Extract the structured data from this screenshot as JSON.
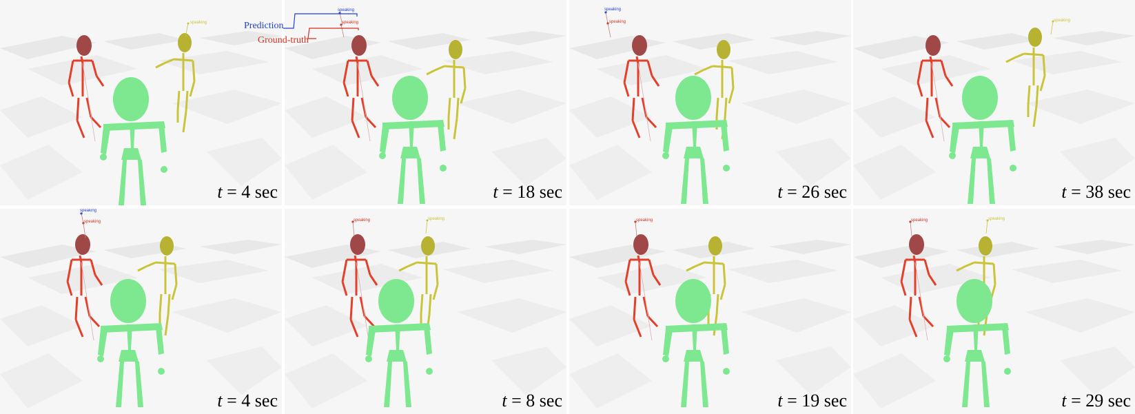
{
  "legend": {
    "prediction": "Prediction",
    "ground_truth": "Ground-truth"
  },
  "speaking_label": "speaking",
  "colors": {
    "prediction": "#1f3fd6",
    "ground_truth": "#d0301e",
    "speaker_red_body": "#e2402a",
    "speaker_red_head": "#a04848",
    "speaker_yellow": "#c9c43a",
    "listener_green": "#7de88f",
    "floor_light": "#ffffff",
    "floor_dark": "#e6e6e6"
  },
  "panels": [
    {
      "time_value": "4",
      "unit": "sec",
      "labels": [
        "gt-yellow"
      ]
    },
    {
      "time_value": "18",
      "unit": "sec",
      "labels": [
        "pred-red",
        "gt-red"
      ]
    },
    {
      "time_value": "26",
      "unit": "sec",
      "labels": [
        "pred-red",
        "gt-red"
      ]
    },
    {
      "time_value": "38",
      "unit": "sec",
      "labels": [
        "gt-yellow"
      ]
    },
    {
      "time_value": "4",
      "unit": "sec",
      "labels": [
        "pred-red",
        "gt-red"
      ]
    },
    {
      "time_value": "8",
      "unit": "sec",
      "labels": [
        "gt-red",
        "gt-yellow"
      ]
    },
    {
      "time_value": "19",
      "unit": "sec",
      "labels": [
        "gt-red",
        "gt-yellow"
      ]
    },
    {
      "time_value": "29",
      "unit": "sec",
      "labels": [
        "gt-red",
        "gt-yellow"
      ]
    }
  ]
}
